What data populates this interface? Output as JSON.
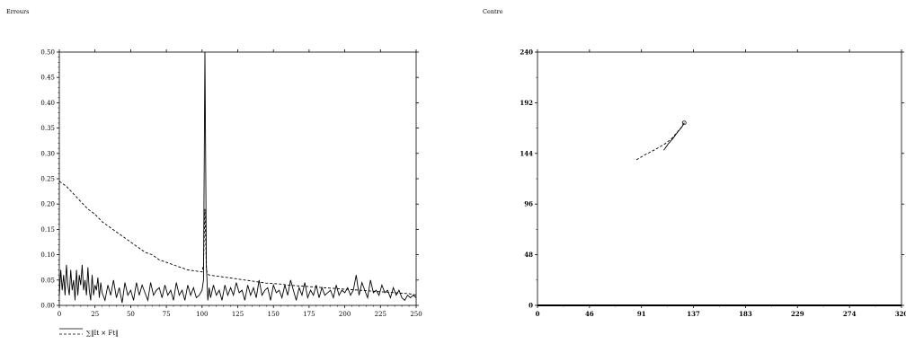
{
  "chart_data": [
    {
      "type": "line",
      "title": "Erreurs",
      "xlabel": "",
      "ylabel": "",
      "xlim": [
        0,
        250
      ],
      "ylim": [
        0,
        0.5
      ],
      "xticks": [
        "0",
        "25",
        "50",
        "75",
        "100",
        "125",
        "150",
        "175",
        "200",
        "225",
        "250"
      ],
      "yticks": [
        "0.00",
        "0.05",
        "0.10",
        "0.15",
        "0.20",
        "0.25",
        "0.30",
        "0.35",
        "0.40",
        "0.45",
        "0.50"
      ],
      "legend": [
        "∑‖It × Ft‖"
      ],
      "series": [
        {
          "style": "solid",
          "x": [
            0,
            1,
            2,
            3,
            4,
            5,
            6,
            7,
            8,
            9,
            10,
            11,
            12,
            13,
            14,
            15,
            16,
            17,
            18,
            19,
            20,
            21,
            22,
            23,
            24,
            25,
            26,
            27,
            28,
            29,
            30,
            32,
            34,
            36,
            38,
            40,
            42,
            44,
            46,
            48,
            50,
            52,
            54,
            56,
            58,
            60,
            62,
            64,
            66,
            68,
            70,
            72,
            74,
            76,
            78,
            80,
            82,
            84,
            86,
            88,
            90,
            92,
            94,
            96,
            98,
            100,
            101,
            102,
            103,
            104,
            105,
            106,
            108,
            110,
            112,
            114,
            116,
            118,
            120,
            122,
            124,
            126,
            128,
            130,
            132,
            134,
            136,
            138,
            140,
            142,
            144,
            146,
            148,
            150,
            152,
            154,
            156,
            158,
            160,
            162,
            164,
            166,
            168,
            170,
            172,
            174,
            176,
            178,
            180,
            182,
            184,
            186,
            188,
            190,
            192,
            194,
            196,
            198,
            200,
            202,
            204,
            206,
            208,
            210,
            212,
            214,
            216,
            218,
            220,
            222,
            224,
            226,
            228,
            230,
            232,
            234,
            236,
            238,
            240,
            242,
            244,
            246,
            248,
            250
          ],
          "y": [
            0.02,
            0.07,
            0.03,
            0.06,
            0.02,
            0.08,
            0.04,
            0.02,
            0.07,
            0.03,
            0.05,
            0.01,
            0.07,
            0.02,
            0.06,
            0.04,
            0.08,
            0.03,
            0.05,
            0.02,
            0.075,
            0.03,
            0.01,
            0.06,
            0.02,
            0.04,
            0.03,
            0.055,
            0.015,
            0.045,
            0.025,
            0.01,
            0.04,
            0.02,
            0.05,
            0.015,
            0.035,
            0.005,
            0.045,
            0.02,
            0.03,
            0.01,
            0.045,
            0.02,
            0.04,
            0.025,
            0.01,
            0.045,
            0.02,
            0.03,
            0.035,
            0.015,
            0.04,
            0.02,
            0.03,
            0.01,
            0.045,
            0.02,
            0.03,
            0.01,
            0.04,
            0.02,
            0.035,
            0.015,
            0.02,
            0.03,
            0.05,
            0.5,
            0.08,
            0.01,
            0.035,
            0.015,
            0.04,
            0.02,
            0.03,
            0.01,
            0.04,
            0.02,
            0.035,
            0.02,
            0.045,
            0.025,
            0.03,
            0.01,
            0.04,
            0.02,
            0.035,
            0.015,
            0.05,
            0.02,
            0.03,
            0.035,
            0.01,
            0.04,
            0.025,
            0.03,
            0.015,
            0.04,
            0.02,
            0.05,
            0.03,
            0.01,
            0.035,
            0.02,
            0.045,
            0.015,
            0.03,
            0.02,
            0.04,
            0.015,
            0.035,
            0.02,
            0.025,
            0.03,
            0.015,
            0.04,
            0.02,
            0.03,
            0.025,
            0.035,
            0.02,
            0.03,
            0.06,
            0.02,
            0.045,
            0.03,
            0.015,
            0.05,
            0.025,
            0.03,
            0.02,
            0.04,
            0.025,
            0.03,
            0.015,
            0.035,
            0.02,
            0.03,
            0.015,
            0.01,
            0.02,
            0.015,
            0.02,
            0.015
          ]
        },
        {
          "style": "dashed",
          "x": [
            0,
            5,
            10,
            15,
            20,
            25,
            30,
            35,
            40,
            45,
            50,
            55,
            60,
            65,
            70,
            75,
            80,
            85,
            90,
            95,
            100,
            101,
            102,
            103,
            104,
            105,
            110,
            115,
            120,
            125,
            130,
            135,
            140,
            145,
            150,
            155,
            160,
            165,
            170,
            175,
            180,
            185,
            190,
            195,
            200,
            205,
            210,
            215,
            220,
            225,
            230,
            235,
            240,
            245,
            250
          ],
          "y": [
            0.245,
            0.235,
            0.22,
            0.205,
            0.19,
            0.18,
            0.165,
            0.155,
            0.145,
            0.135,
            0.125,
            0.115,
            0.105,
            0.1,
            0.09,
            0.085,
            0.08,
            0.075,
            0.07,
            0.068,
            0.066,
            0.08,
            0.19,
            0.07,
            0.062,
            0.06,
            0.058,
            0.056,
            0.054,
            0.052,
            0.05,
            0.048,
            0.046,
            0.044,
            0.043,
            0.042,
            0.04,
            0.039,
            0.038,
            0.037,
            0.036,
            0.035,
            0.034,
            0.033,
            0.032,
            0.031,
            0.03,
            0.029,
            0.028,
            0.027,
            0.026,
            0.025,
            0.024,
            0.023,
            0.02
          ]
        }
      ]
    },
    {
      "type": "line",
      "title": "Centre",
      "xlabel": "",
      "ylabel": "",
      "xlim": [
        0,
        320
      ],
      "ylim": [
        0,
        240
      ],
      "xticks": [
        "0",
        "46",
        "91",
        "137",
        "183",
        "229",
        "274",
        "320"
      ],
      "yticks": [
        "0",
        "48",
        "96",
        "144",
        "192",
        "240"
      ],
      "series": [
        {
          "style": "dashed",
          "x": [
            87,
            95,
            104,
            112,
            118,
            122,
            126,
            129
          ],
          "y": [
            138,
            143,
            148,
            153,
            158,
            163,
            168,
            173
          ]
        },
        {
          "style": "solid",
          "x": [
            111,
            115,
            119,
            123,
            127,
            129
          ],
          "y": [
            147,
            153,
            158,
            164,
            169,
            173
          ]
        }
      ],
      "marker_point": [
        129,
        173
      ]
    }
  ]
}
